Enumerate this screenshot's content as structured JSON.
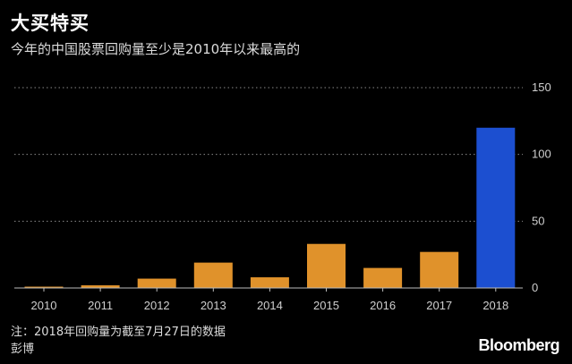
{
  "header": {
    "title": "大买特买",
    "subtitle": "今年的中国股票回购量至少是2010年以来最高的"
  },
  "footer": {
    "note": "注：2018年回购量为截至7月27日的数据",
    "source": "彭博",
    "logo": "Bloomberg"
  },
  "colors": {
    "background": "#000000",
    "bar_default": "#e0922b",
    "bar_highlight": "#1c4fd0",
    "gridline": "#8a8a8a",
    "text": "#ffffff"
  },
  "chart_data": {
    "type": "bar",
    "categories": [
      "2010",
      "2011",
      "2012",
      "2013",
      "2014",
      "2015",
      "2016",
      "2017",
      "2018"
    ],
    "values": [
      1,
      2,
      7,
      19,
      8,
      33,
      15,
      27,
      120
    ],
    "highlight_index": 8,
    "y_ticks": [
      "0",
      "50",
      "100",
      "150"
    ],
    "ylim": [
      0,
      150
    ],
    "title": "大买特买",
    "subtitle": "今年的中国股票回购量至少是2010年以来最高的",
    "xlabel": "",
    "ylabel": "",
    "grid": true,
    "y_axis_side": "right"
  }
}
